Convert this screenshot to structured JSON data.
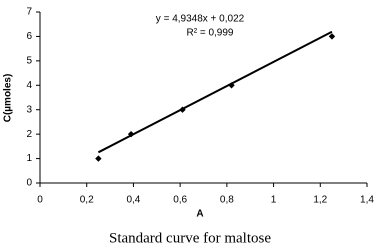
{
  "chart_data": {
    "type": "scatter",
    "x_label": "A",
    "y_label": "C(µmoles)",
    "caption": "Standard curve for maltose",
    "x": [
      0.25,
      0.39,
      0.61,
      0.82,
      1.25
    ],
    "values": [
      1,
      2,
      3,
      4,
      6
    ],
    "color": "#000000",
    "trendline": {
      "equation": "y = 4,9348x + 0,022",
      "r_squared": "R² = 0,999",
      "slope": 4.9348,
      "intercept": 0.022
    },
    "xlim": [
      0,
      1.4
    ],
    "xticks": [
      0,
      {
        "value": 0.2,
        "label": "0,2"
      },
      {
        "value": 0.4,
        "label": "0,4"
      },
      {
        "value": 0.6,
        "label": "0,6"
      },
      {
        "value": 0.8,
        "label": "0,8"
      },
      1,
      {
        "value": 1.2,
        "label": "1,2"
      },
      {
        "value": 1.4,
        "label": "1,4"
      }
    ],
    "ylim": [
      0,
      7
    ],
    "yticks": [
      0,
      1,
      2,
      3,
      4,
      5,
      6,
      7
    ]
  }
}
